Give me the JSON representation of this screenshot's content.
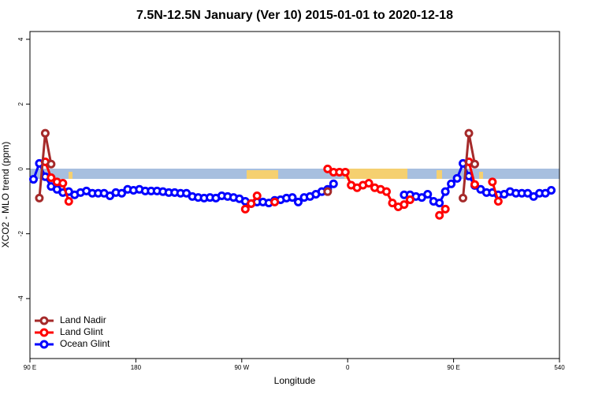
{
  "chart_data": {
    "type": "line",
    "title": "7.5N-12.5N January (Ver 10)   2015-01-01 to 2020-12-18",
    "xlabel": "Longitude",
    "ylabel": "XCO2 - MLO trend (ppm)",
    "xlim": [
      90,
      540
    ],
    "xticks": [
      {
        "value": 90,
        "label": "90 E"
      },
      180,
      {
        "value": 270,
        "label": "90 W"
      },
      {
        "value": 360,
        "label": "0"
      },
      {
        "value": 450,
        "label": "90 E"
      },
      540
    ],
    "ylim": [
      -5.85,
      4.24
    ],
    "yticks": [
      -4,
      -2,
      0,
      2,
      4
    ],
    "legend": "bottom-left",
    "x": [
      93,
      98,
      103,
      108,
      113,
      118,
      123,
      128,
      133,
      138,
      143,
      148,
      153,
      158,
      163,
      168,
      173,
      178,
      183,
      188,
      193,
      198,
      203,
      208,
      213,
      218,
      223,
      228,
      233,
      238,
      243,
      248,
      253,
      258,
      263,
      268,
      273,
      278,
      283,
      288,
      293,
      298,
      303,
      308,
      313,
      318,
      323,
      328,
      333,
      338,
      343,
      348,
      353,
      358,
      363,
      368,
      373,
      378,
      383,
      388,
      393,
      398,
      403,
      408,
      413,
      418,
      423,
      428,
      433,
      438,
      443,
      448,
      453,
      458,
      463,
      468,
      473,
      478,
      483,
      488,
      493,
      498,
      503,
      508,
      513,
      518,
      523,
      528,
      533
    ],
    "series": [
      {
        "name": "Land Nadir",
        "color": "#a52a2a",
        "values": [
          null,
          -0.9,
          1.1,
          0.15,
          null,
          null,
          null,
          null,
          null,
          null,
          null,
          null,
          null,
          null,
          null,
          null,
          null,
          null,
          null,
          null,
          null,
          null,
          null,
          null,
          null,
          null,
          null,
          null,
          null,
          null,
          null,
          null,
          null,
          null,
          null,
          null,
          null,
          null,
          null,
          null,
          null,
          null,
          null,
          null,
          null,
          null,
          null,
          null,
          null,
          null,
          -0.7,
          null,
          null,
          null,
          null,
          null,
          null,
          null,
          null,
          null,
          null,
          null,
          null,
          null,
          null,
          null,
          null,
          null,
          null,
          null,
          null,
          null,
          null,
          -0.9,
          1.1,
          0.15,
          null,
          null,
          null,
          null,
          null,
          null,
          null,
          null,
          null,
          null,
          null,
          null,
          null
        ]
      },
      {
        "name": "Land Glint",
        "color": "#ff0000",
        "values": [
          null,
          null,
          0.22,
          -0.27,
          -0.4,
          -0.44,
          -1.0,
          null,
          null,
          null,
          null,
          null,
          null,
          null,
          null,
          null,
          null,
          null,
          null,
          null,
          null,
          null,
          null,
          null,
          null,
          null,
          null,
          null,
          null,
          null,
          null,
          null,
          null,
          null,
          null,
          null,
          -1.24,
          -1.07,
          -0.83,
          null,
          null,
          -1.02,
          null,
          null,
          null,
          null,
          null,
          null,
          null,
          null,
          0.0,
          -0.1,
          -0.1,
          -0.1,
          -0.5,
          -0.58,
          -0.5,
          -0.44,
          -0.58,
          -0.63,
          -0.7,
          -1.05,
          -1.17,
          -1.1,
          -0.95,
          null,
          null,
          null,
          null,
          -1.43,
          -1.24,
          null,
          null,
          null,
          0.22,
          -0.48,
          null,
          null,
          -0.4,
          -1.0,
          null,
          null,
          null,
          null,
          null,
          null,
          null,
          null,
          null
        ]
      },
      {
        "name": "Ocean Glint",
        "color": "#0000ff",
        "values": [
          -0.32,
          0.17,
          -0.24,
          -0.54,
          -0.63,
          -0.73,
          -0.7,
          -0.8,
          -0.73,
          -0.68,
          -0.75,
          -0.75,
          -0.75,
          -0.83,
          -0.73,
          -0.75,
          -0.63,
          -0.66,
          -0.63,
          -0.68,
          -0.68,
          -0.68,
          -0.7,
          -0.73,
          -0.73,
          -0.75,
          -0.75,
          -0.85,
          -0.88,
          -0.9,
          -0.88,
          -0.9,
          -0.83,
          -0.85,
          -0.88,
          -0.92,
          -1.0,
          -1.07,
          -1.02,
          -1.02,
          -1.05,
          -0.97,
          -0.95,
          -0.9,
          -0.88,
          -1.02,
          -0.88,
          -0.85,
          -0.78,
          -0.7,
          -0.63,
          -0.46,
          null,
          null,
          null,
          null,
          null,
          null,
          null,
          null,
          null,
          null,
          null,
          -0.8,
          -0.8,
          -0.85,
          -0.88,
          -0.78,
          -1.0,
          -1.05,
          -0.7,
          -0.46,
          -0.29,
          0.17,
          -0.22,
          -0.51,
          -0.63,
          -0.73,
          -0.73,
          -0.8,
          -0.78,
          -0.7,
          -0.75,
          -0.75,
          -0.75,
          -0.85,
          -0.75,
          -0.75,
          -0.66
        ]
      }
    ]
  }
}
